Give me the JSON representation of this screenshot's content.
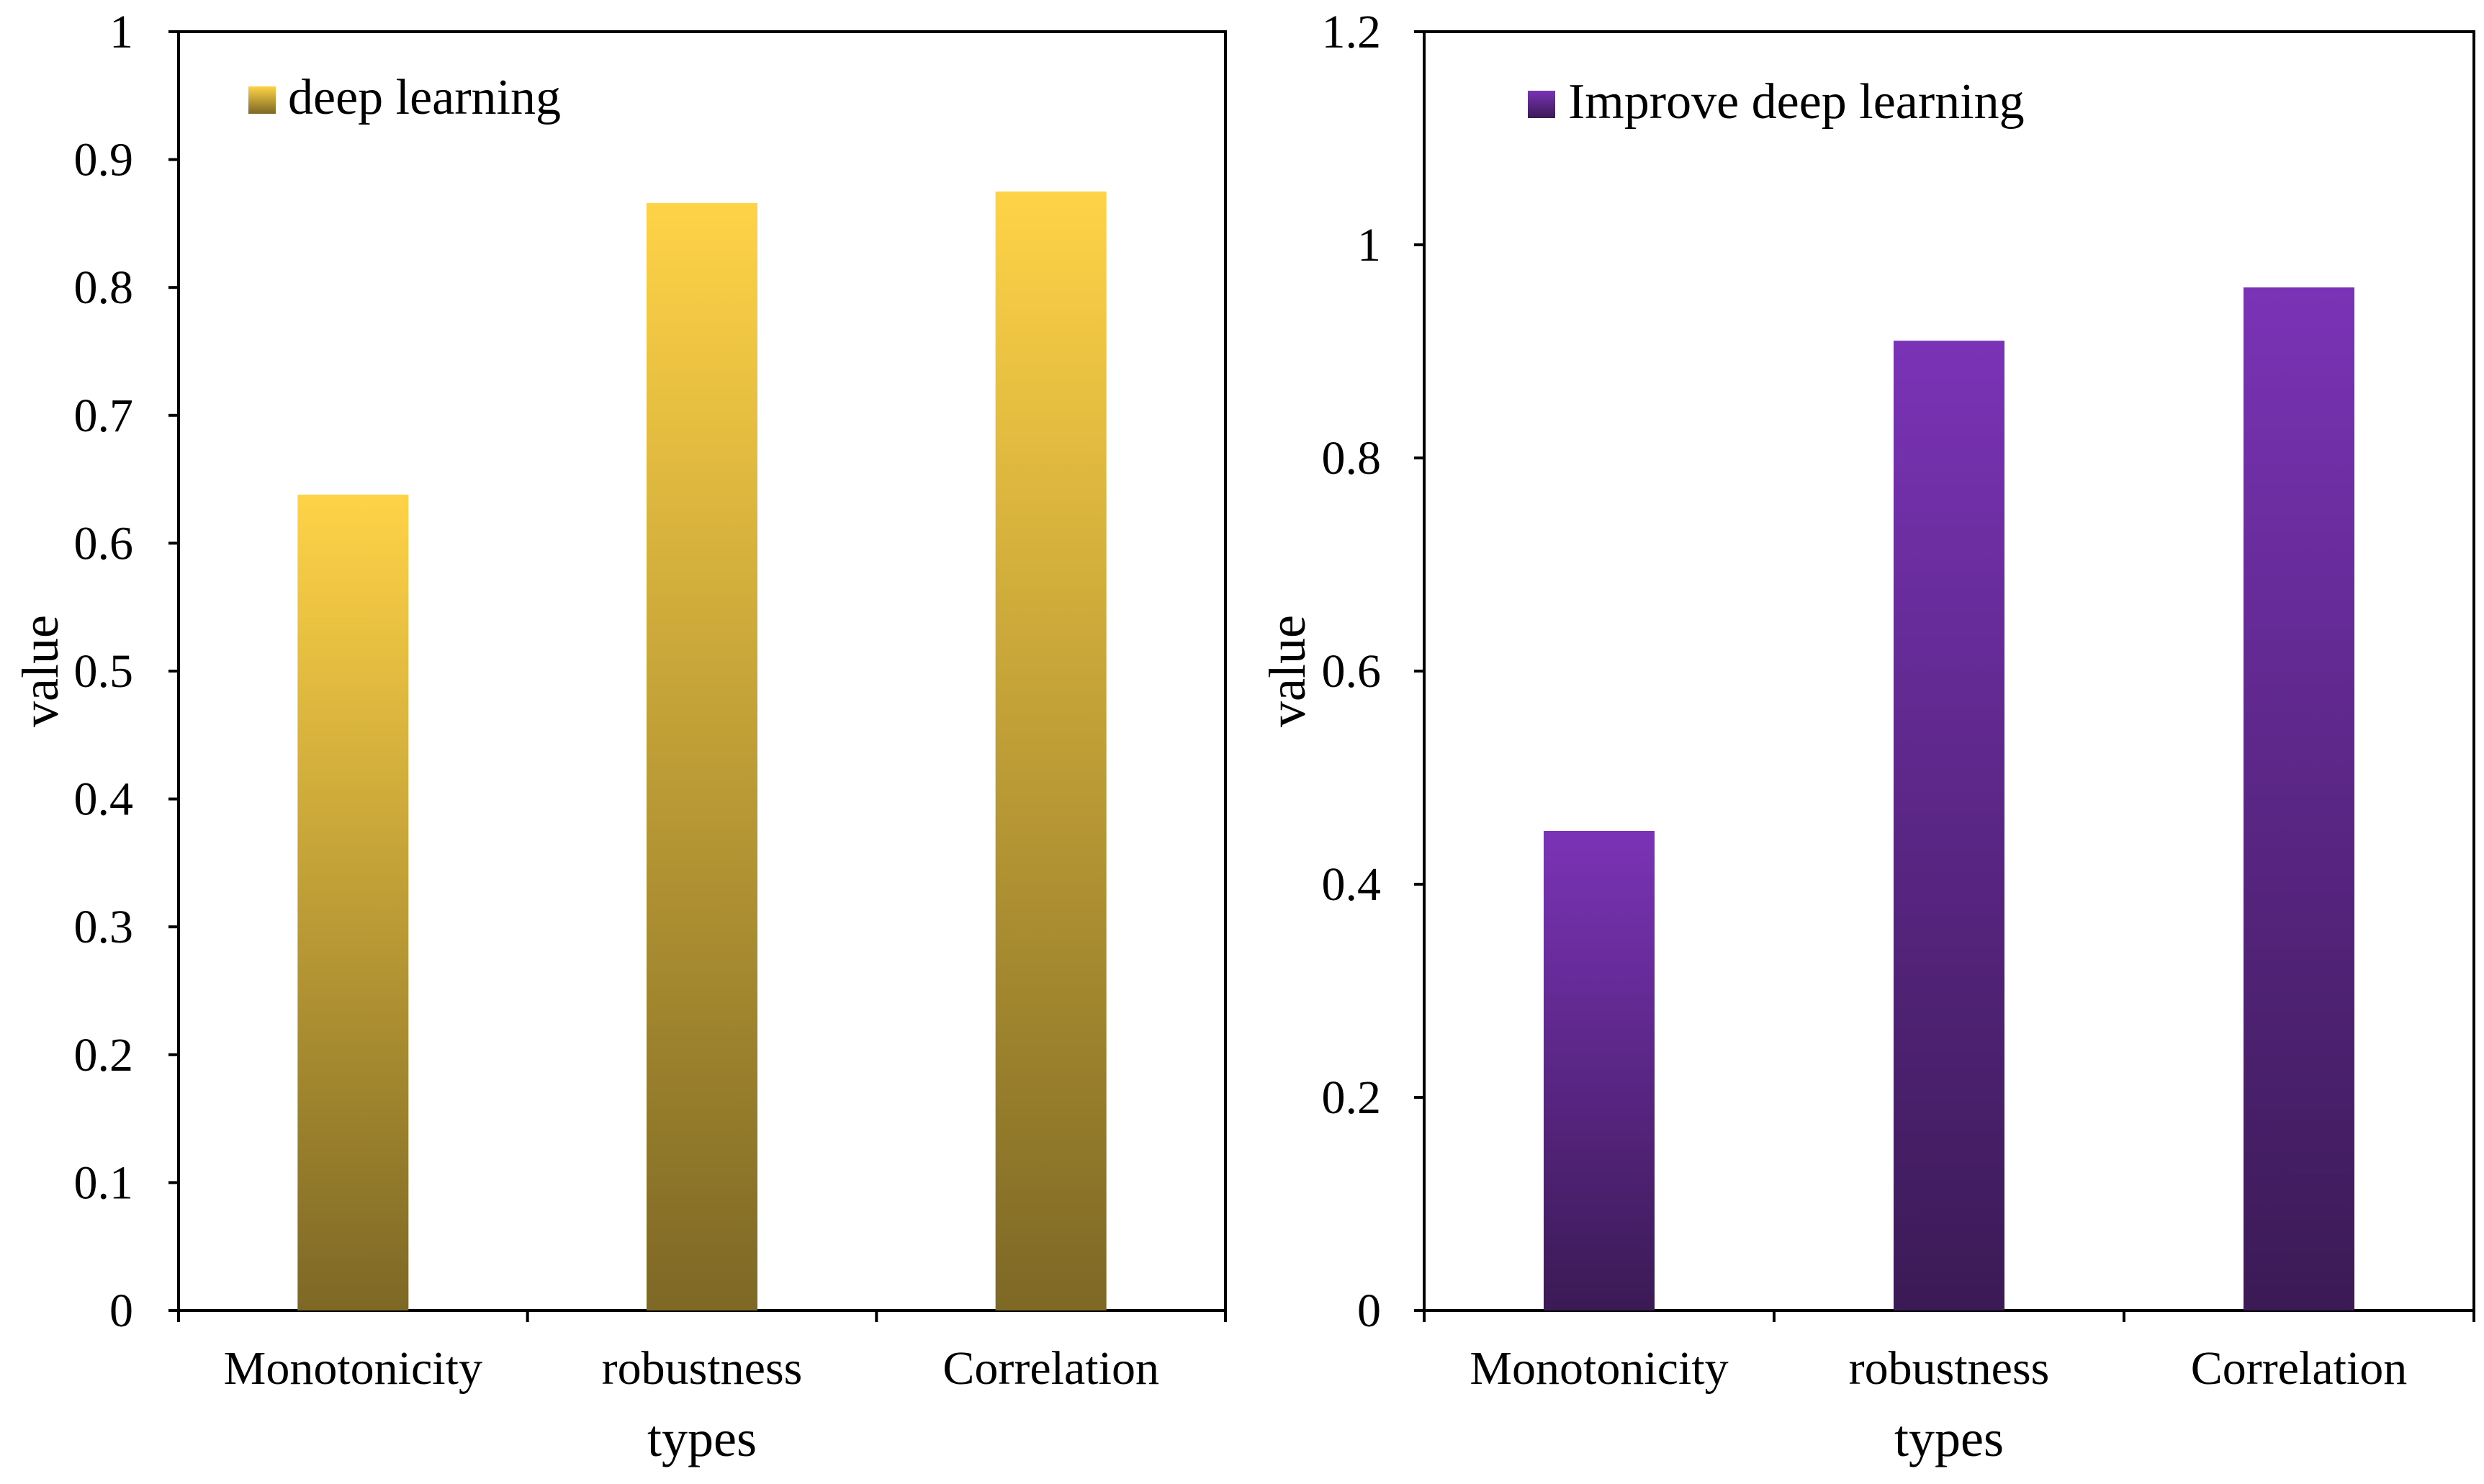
{
  "chart_data": [
    {
      "type": "bar",
      "title": "",
      "xlabel": "types",
      "ylabel": "value",
      "categories": [
        "Monotonicity",
        "robustness",
        "Correlation"
      ],
      "series": [
        {
          "name": "deep learning",
          "values": [
            0.638,
            0.866,
            0.875
          ]
        }
      ],
      "ylim": [
        0,
        1
      ],
      "ytick_values": [
        0,
        0.1,
        0.2,
        0.3,
        0.4,
        0.5,
        0.6,
        0.7,
        0.8,
        0.9,
        1
      ],
      "ytick_labels": [
        "0",
        "0.1",
        "0.2",
        "0.3",
        "0.4",
        "0.5",
        "0.6",
        "0.7",
        "0.8",
        "0.9",
        "1"
      ],
      "grid": false,
      "legend_position": "top-left",
      "colors": {
        "top": "#ffd347",
        "bottom": "#7d6825"
      }
    },
    {
      "type": "bar",
      "title": "",
      "xlabel": "types",
      "ylabel": "value",
      "categories": [
        "Monotonicity",
        "robustness",
        "Correlation"
      ],
      "series": [
        {
          "name": "Improve deep learning",
          "values": [
            0.45,
            0.91,
            0.96
          ]
        }
      ],
      "ylim": [
        0,
        1.2
      ],
      "ytick_values": [
        0,
        0.2,
        0.4,
        0.6,
        0.8,
        1,
        1.2
      ],
      "ytick_labels": [
        "0",
        "0.2",
        "0.4",
        "0.6",
        "0.8",
        "1",
        "1.2"
      ],
      "grid": false,
      "legend_position": "top-left",
      "colors": {
        "top": "#7a33b6",
        "bottom": "#3b1a55"
      }
    }
  ]
}
